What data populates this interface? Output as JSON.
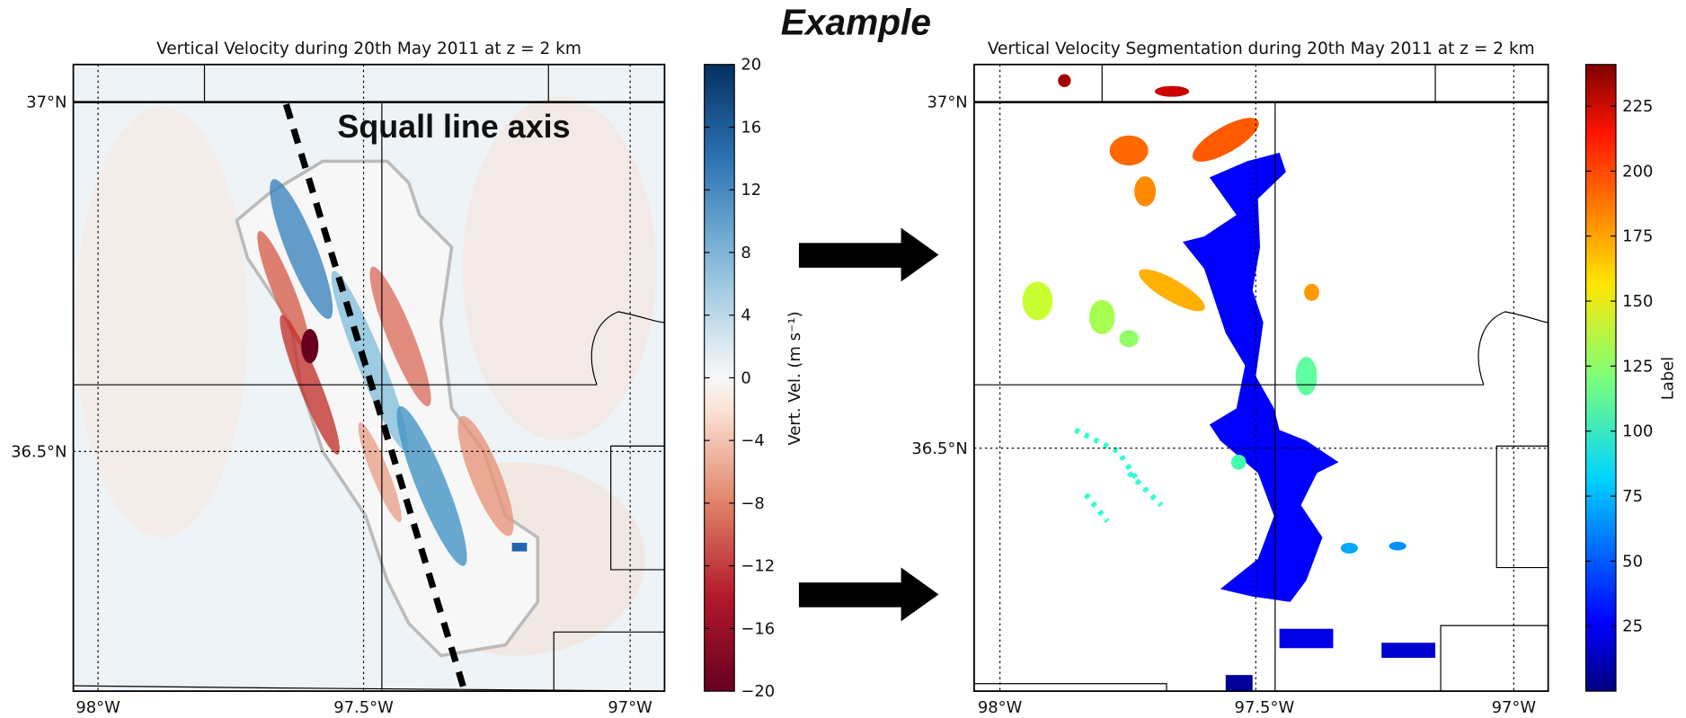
{
  "header": {
    "title": "Example"
  },
  "panels": [
    {
      "title": "Vertical Velocity during 20th May 2011 at z = 2 km",
      "annotation": "Squall line axis",
      "x_ticks": [
        "98°W",
        "97.5°W",
        "97°W"
      ],
      "y_ticks": [
        "37°N",
        "36.5°N"
      ],
      "colorbar": {
        "label": "Vert. Vel. (m s⁻¹)",
        "range": [
          -20,
          20
        ],
        "ticks": [
          {
            "value": -20,
            "label": "−20"
          },
          {
            "value": -16,
            "label": "−16"
          },
          {
            "value": -12,
            "label": "−12"
          },
          {
            "value": -8,
            "label": "−8"
          },
          {
            "value": -4,
            "label": "−4"
          },
          0,
          4,
          8,
          12,
          16,
          20
        ]
      }
    },
    {
      "title": "Vertical Velocity Segmentation during 20th May 2011 at z = 2 km",
      "x_ticks": [
        "98°W",
        "97.5°W",
        "97°W"
      ],
      "y_ticks": [
        "37°N",
        "36.5°N"
      ],
      "colorbar": {
        "label": "Label",
        "range": [
          0,
          241
        ],
        "ticks": [
          25,
          50,
          75,
          100,
          125,
          150,
          175,
          200,
          225
        ]
      }
    }
  ]
}
